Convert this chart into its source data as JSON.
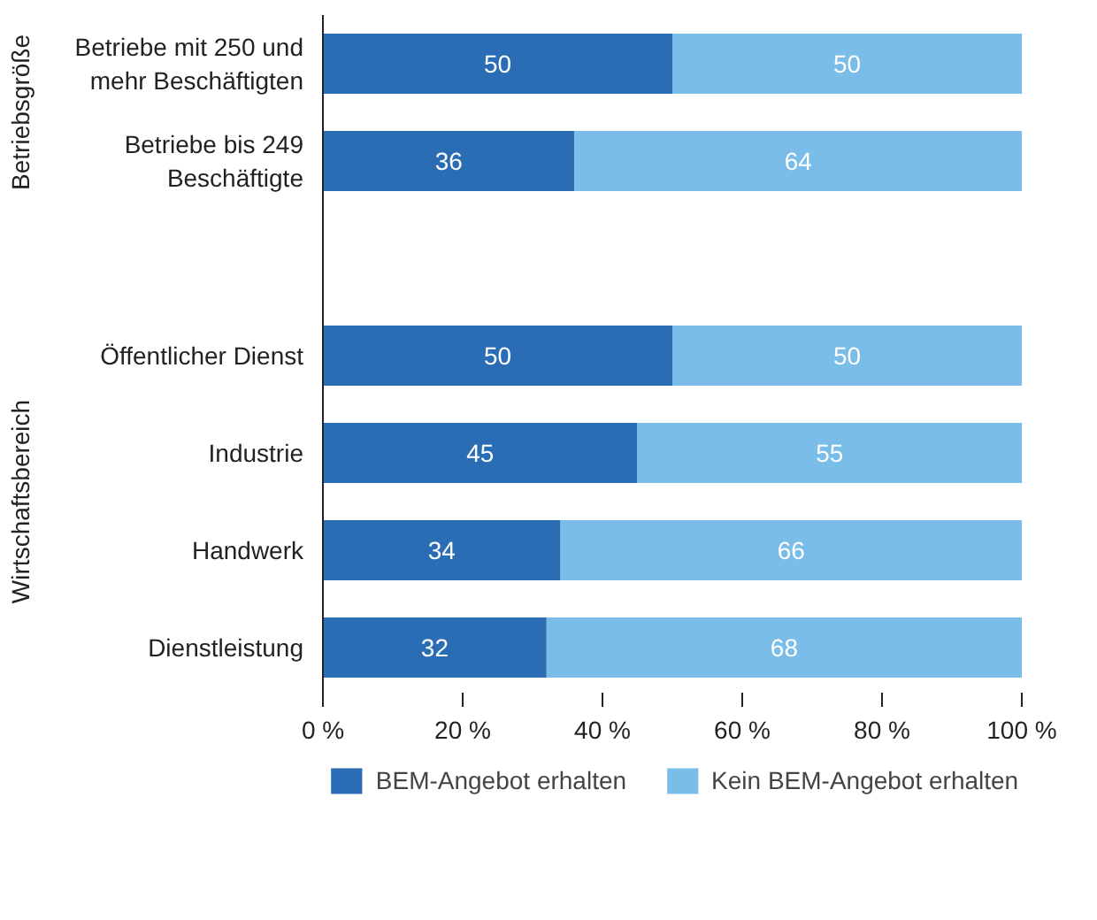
{
  "chart_data": {
    "type": "bar",
    "orientation": "horizontal",
    "stacked": true,
    "categories": [
      "Betriebe mit 250 und\nmehr Beschäftigten",
      "Betriebe bis 249\nBeschäftigte",
      null,
      "Öffentlicher Dienst",
      "Industrie",
      "Handwerk",
      "Dienstleistung"
    ],
    "series": [
      {
        "name": "BEM-Angebot erhalten",
        "color": "#2a6db4",
        "values": [
          50,
          36,
          null,
          50,
          45,
          34,
          32
        ]
      },
      {
        "name": "Kein BEM-Angebot erhalten",
        "color": "#7abde9",
        "values": [
          50,
          64,
          null,
          50,
          55,
          66,
          68
        ]
      }
    ],
    "xlim": [
      0,
      100
    ],
    "xticks": [
      {
        "value": 0,
        "label": "0 %"
      },
      {
        "value": 20,
        "label": "20 %"
      },
      {
        "value": 40,
        "label": "40 %"
      },
      {
        "value": 60,
        "label": "60 %"
      },
      {
        "value": 80,
        "label": "80 %"
      },
      {
        "value": 100,
        "label": "100 %"
      }
    ],
    "data_labels": true,
    "grid": false,
    "legend": "bottom",
    "annotations": [
      "Betriebsgröße",
      "Wirtschaftsbereich"
    ]
  }
}
